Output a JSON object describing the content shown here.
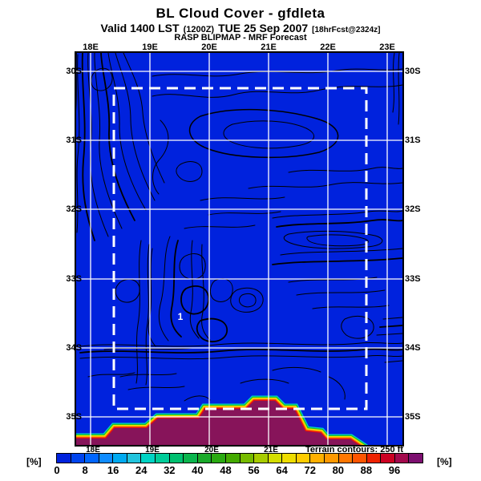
{
  "header": {
    "title": "BL Cloud Cover - gfdleta",
    "valid_main": "Valid 1400 LST",
    "valid_zulu": "(1200Z)",
    "valid_date": "TUE 25 Sep 2007",
    "valid_fcst": "[18hrFcst@2324z]",
    "model_line": "RASP BLIPMAP - MRF Forecast"
  },
  "map": {
    "top_axis_labels": [
      "18E",
      "19E",
      "20E",
      "21E",
      "22E",
      "23E"
    ],
    "bottom_axis_labels": [
      "18E",
      "19E",
      "20E",
      "21E"
    ],
    "left_axis_labels": [
      "30S",
      "31S",
      "32S",
      "33S",
      "34S",
      "35S"
    ],
    "right_axis_labels": [
      "30S",
      "31S",
      "32S",
      "33S",
      "34S",
      "35S"
    ],
    "site_marker_label": "1",
    "terrain_note": "Terrain contours: 250 ft",
    "colors": {
      "land_fill": "#0022dd",
      "cloud_region_fill": "#87145a",
      "grid_line": "#ffffff",
      "domain_boundary": "#ffffff",
      "contour_line": "#000000",
      "fringe": [
        "#00d0c8",
        "#22bb22",
        "#e8e800",
        "#ff9900",
        "#e81010"
      ]
    }
  },
  "colorbar": {
    "unit": "[%]",
    "tick_labels": [
      "0",
      "8",
      "16",
      "24",
      "32",
      "40",
      "48",
      "56",
      "64",
      "72",
      "80",
      "88",
      "96"
    ],
    "segment_colors": [
      "#0022dd",
      "#0044ee",
      "#0066ff",
      "#0f8cff",
      "#00aaf0",
      "#22c4dd",
      "#00d4c4",
      "#00cc99",
      "#00c070",
      "#0ab54d",
      "#1aaa2a",
      "#2aaa11",
      "#44aa00",
      "#77bb00",
      "#a8cc00",
      "#d4dd00",
      "#eedd00",
      "#ffcc00",
      "#ffb000",
      "#ff9900",
      "#ff7700",
      "#ff5500",
      "#ee2200",
      "#cc0022",
      "#a3094d",
      "#7d0f70"
    ]
  }
}
